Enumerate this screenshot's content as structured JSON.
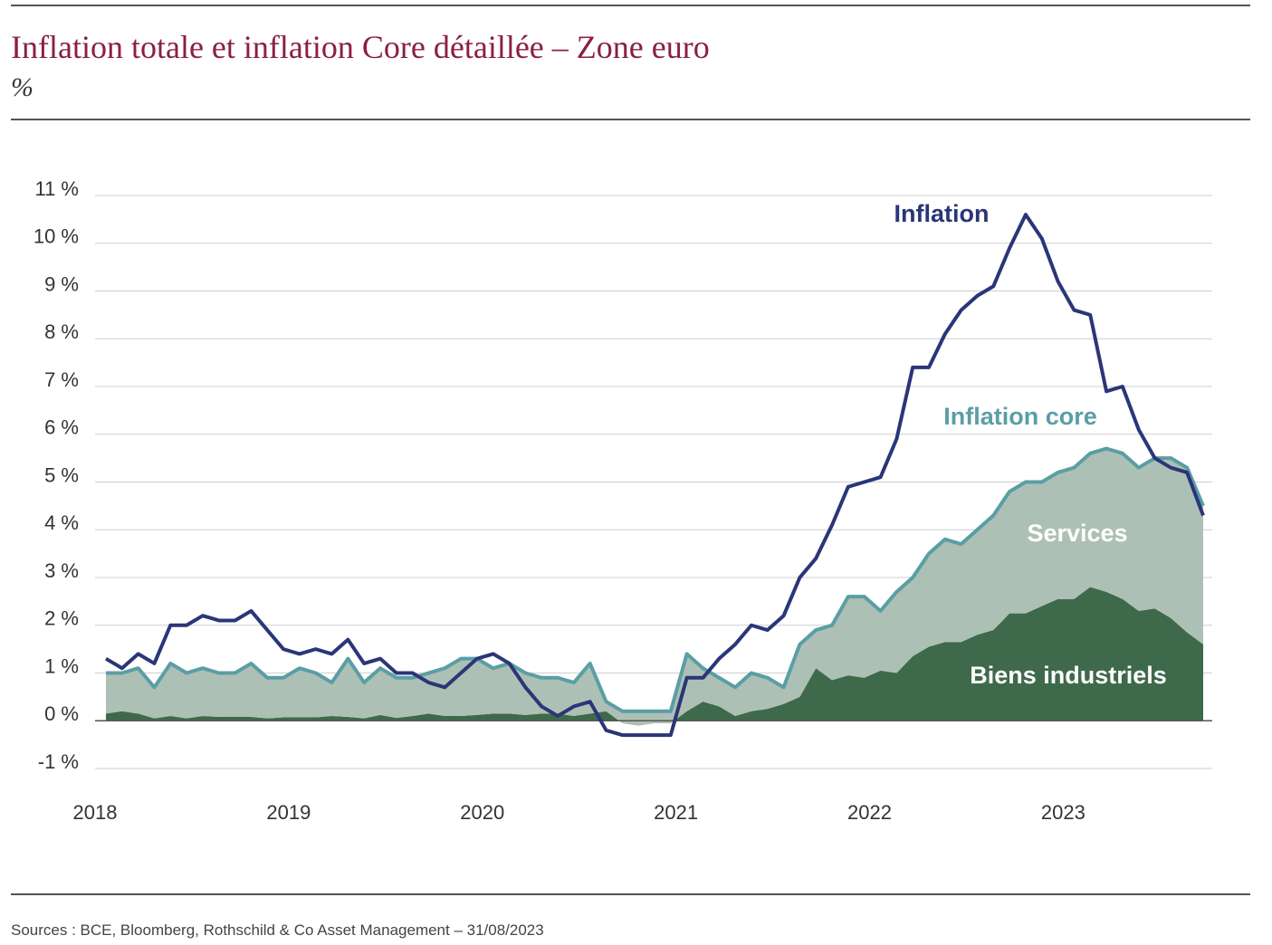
{
  "chart_data": {
    "type": "line",
    "title": "Inflation totale et inflation Core détaillée – Zone euro",
    "subtitle": "%",
    "source": "Sources : BCE, Bloomberg, Rothschild & Co Asset Management – 31/08/2023",
    "categories": [
      "2018",
      null,
      null,
      null,
      null,
      null,
      null,
      null,
      null,
      null,
      null,
      null,
      "2019",
      null,
      null,
      null,
      null,
      null,
      null,
      null,
      null,
      null,
      null,
      null,
      "2020",
      null,
      null,
      null,
      null,
      null,
      null,
      null,
      null,
      null,
      null,
      null,
      "2021",
      null,
      null,
      null,
      null,
      null,
      null,
      null,
      null,
      null,
      null,
      null,
      "2022",
      null,
      null,
      null,
      null,
      null,
      null,
      null,
      null,
      null,
      null,
      null,
      "2023",
      null,
      null,
      null,
      null,
      null,
      null,
      null,
      null
    ],
    "ylim": [
      -1,
      11
    ],
    "yticks": [
      {
        "value": -1,
        "label": "-1 %"
      },
      {
        "value": 0,
        "label": "0 %"
      },
      {
        "value": 1,
        "label": "1 %"
      },
      {
        "value": 2,
        "label": "2 %"
      },
      {
        "value": 3,
        "label": "3 %"
      },
      {
        "value": 4,
        "label": "4 %"
      },
      {
        "value": 5,
        "label": "5 %"
      },
      {
        "value": 6,
        "label": "6 %"
      },
      {
        "value": 7,
        "label": "7 %"
      },
      {
        "value": 8,
        "label": "8 %"
      },
      {
        "value": 9,
        "label": "9 %"
      },
      {
        "value": 10,
        "label": "10 %"
      },
      {
        "value": 11,
        "label": "11 %"
      }
    ],
    "grid": true,
    "stacked_areas": true,
    "series": [
      {
        "name": "Biens industriels",
        "type": "area",
        "color": "#3e6a4b",
        "values": [
          0.15,
          0.2,
          0.15,
          0.05,
          0.1,
          0.05,
          0.1,
          0.08,
          0.08,
          0.08,
          0.05,
          0.07,
          0.07,
          0.07,
          0.1,
          0.08,
          0.05,
          0.12,
          0.06,
          0.1,
          0.15,
          0.1,
          0.1,
          0.12,
          0.15,
          0.15,
          0.12,
          0.15,
          0.15,
          0.1,
          0.15,
          0.2,
          -0.05,
          -0.1,
          -0.05,
          -0.05,
          0.2,
          0.4,
          0.3,
          0.1,
          0.2,
          0.25,
          0.35,
          0.5,
          1.1,
          0.85,
          0.95,
          0.9,
          1.05,
          1.0,
          1.35,
          1.55,
          1.65,
          1.65,
          1.8,
          1.9,
          2.25,
          2.25,
          2.4,
          2.55,
          2.55,
          2.8,
          2.7,
          2.55,
          2.3,
          2.35,
          2.15,
          1.85,
          1.6
        ]
      },
      {
        "name": "Services",
        "type": "area",
        "color": "#adc0b5",
        "values": [
          0.85,
          0.8,
          0.95,
          0.65,
          1.1,
          0.95,
          1.0,
          0.92,
          0.92,
          1.12,
          0.85,
          0.83,
          1.03,
          0.93,
          0.7,
          1.22,
          0.75,
          0.98,
          0.84,
          0.8,
          0.85,
          1.0,
          1.2,
          1.18,
          0.95,
          1.05,
          0.88,
          0.75,
          0.75,
          0.7,
          1.05,
          0.2,
          0.25,
          0.3,
          0.25,
          0.25,
          1.2,
          0.7,
          0.6,
          0.6,
          0.8,
          0.65,
          0.35,
          1.1,
          0.8,
          1.15,
          1.65,
          1.7,
          1.25,
          1.7,
          1.65,
          1.95,
          2.15,
          2.05,
          2.2,
          2.4,
          2.55,
          2.75,
          2.6,
          2.65,
          2.75,
          2.8,
          3.0,
          3.05,
          3.0,
          3.15,
          3.35,
          3.45,
          2.9
        ]
      },
      {
        "name": "Inflation core",
        "type": "line",
        "color": "#5b9ea5",
        "values": [
          1.0,
          1.0,
          1.1,
          0.7,
          1.2,
          1.0,
          1.1,
          1.0,
          1.0,
          1.2,
          0.9,
          0.9,
          1.1,
          1.0,
          0.8,
          1.3,
          0.8,
          1.1,
          0.9,
          0.9,
          1.0,
          1.1,
          1.3,
          1.3,
          1.1,
          1.2,
          1.0,
          0.9,
          0.9,
          0.8,
          1.2,
          0.4,
          0.2,
          0.2,
          0.2,
          0.2,
          1.4,
          1.1,
          0.9,
          0.7,
          1.0,
          0.9,
          0.7,
          1.6,
          1.9,
          2.0,
          2.6,
          2.6,
          2.3,
          2.7,
          3.0,
          3.5,
          3.8,
          3.7,
          4.0,
          4.3,
          4.8,
          5.0,
          5.0,
          5.2,
          5.3,
          5.6,
          5.7,
          5.6,
          5.3,
          5.5,
          5.5,
          5.3,
          4.5
        ]
      },
      {
        "name": "Inflation",
        "type": "line",
        "color": "#2a3677",
        "values": [
          1.3,
          1.1,
          1.4,
          1.2,
          2.0,
          2.0,
          2.2,
          2.1,
          2.1,
          2.3,
          1.9,
          1.5,
          1.4,
          1.5,
          1.4,
          1.7,
          1.2,
          1.3,
          1.0,
          1.0,
          0.8,
          0.7,
          1.0,
          1.3,
          1.4,
          1.2,
          0.7,
          0.3,
          0.1,
          0.3,
          0.4,
          -0.2,
          -0.3,
          -0.3,
          -0.3,
          -0.3,
          0.9,
          0.9,
          1.3,
          1.6,
          2.0,
          1.9,
          2.2,
          3.0,
          3.4,
          4.1,
          4.9,
          5.0,
          5.1,
          5.9,
          7.4,
          7.4,
          8.1,
          8.6,
          8.9,
          9.1,
          9.9,
          10.6,
          10.1,
          9.2,
          8.6,
          8.5,
          6.9,
          7.0,
          6.1,
          5.5,
          5.3,
          5.2,
          4.3
        ]
      }
    ]
  }
}
